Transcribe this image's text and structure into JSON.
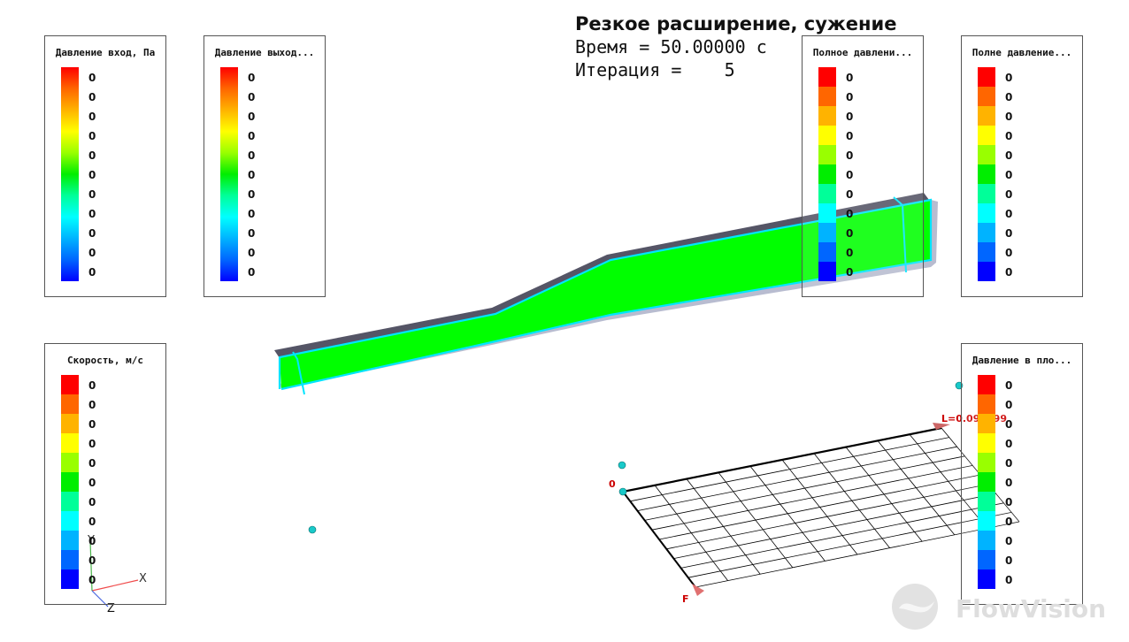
{
  "header": {
    "title": "Резкое расширение, сужение",
    "time_line": "Время = 50.00000 с",
    "iter_line": "Итерация =    5"
  },
  "legends": [
    {
      "title": "Давление вход, Па",
      "mode": "gradient",
      "values": [
        "0",
        "0",
        "0",
        "0",
        "0",
        "0",
        "0",
        "0",
        "0",
        "0",
        "0"
      ]
    },
    {
      "title": "Давление выход...",
      "mode": "gradient",
      "values": [
        "0",
        "0",
        "0",
        "0",
        "0",
        "0",
        "0",
        "0",
        "0",
        "0",
        "0"
      ]
    },
    {
      "title": "Полное давлени...",
      "mode": "discrete",
      "values": [
        "0",
        "0",
        "0",
        "0",
        "0",
        "0",
        "0",
        "0",
        "0",
        "0",
        "0"
      ]
    },
    {
      "title": "Полне давление...",
      "mode": "discrete",
      "values": [
        "0",
        "0",
        "0",
        "0",
        "0",
        "0",
        "0",
        "0",
        "0",
        "0",
        "0"
      ]
    },
    {
      "title": "Скорость, м/с",
      "mode": "discrete",
      "values": [
        "0",
        "0",
        "0",
        "0",
        "0",
        "0",
        "0",
        "0",
        "0",
        "0",
        "0"
      ]
    },
    {
      "title": "Давление в пло...",
      "mode": "discrete",
      "values": [
        "0",
        "0",
        "0",
        "0",
        "0",
        "0",
        "0",
        "0",
        "0",
        "0",
        "0"
      ]
    }
  ],
  "palette": [
    "#ff0000",
    "#ff6600",
    "#ffb300",
    "#ffff00",
    "#99ff00",
    "#00ee00",
    "#00ff99",
    "#00ffff",
    "#00b3ff",
    "#0066ff",
    "#0000ff"
  ],
  "colors": {
    "fluid": "#00ff00",
    "outline": "#00e5ff",
    "top_wall": "#555566",
    "side_wall": "#b8bcd0",
    "marker": "#19c9c9"
  },
  "axes": {
    "x": "X",
    "y": "Y",
    "z": "Z"
  },
  "grid": {
    "origin_label": "0",
    "length_label": "L=0.099999",
    "f_label": "F"
  },
  "watermark": "FlowVision"
}
